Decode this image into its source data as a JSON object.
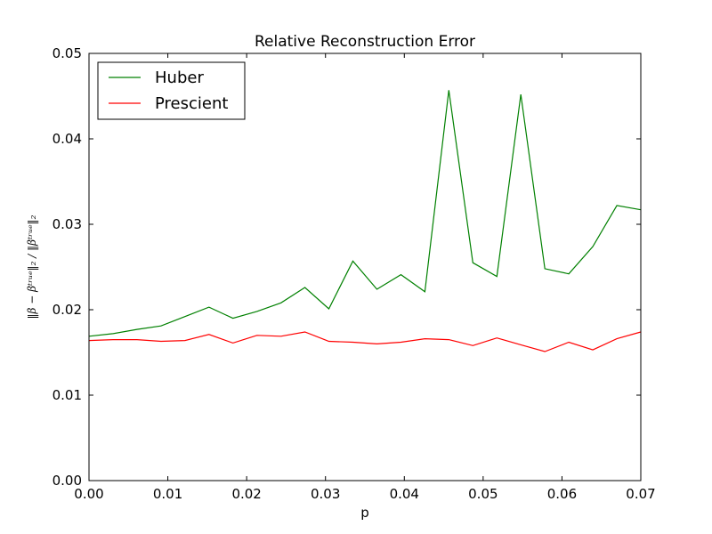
{
  "chart_data": {
    "type": "line",
    "title": "Relative Reconstruction Error",
    "xlabel": "p",
    "ylabel": "‖β − βᵗʳᵘᵉ‖₂ / ‖βᵗʳᵘᵉ‖₂",
    "xlim": [
      0.0,
      0.07
    ],
    "ylim": [
      0.0,
      0.05
    ],
    "xticks": [
      "0.00",
      "0.01",
      "0.02",
      "0.03",
      "0.04",
      "0.05",
      "0.06",
      "0.07"
    ],
    "yticks": [
      "0.00",
      "0.01",
      "0.02",
      "0.03",
      "0.04",
      "0.05"
    ],
    "legend_position": "top-left",
    "grid": false,
    "x": [
      0.0,
      0.00304,
      0.00609,
      0.00913,
      0.01217,
      0.01522,
      0.01826,
      0.0213,
      0.02435,
      0.02739,
      0.03043,
      0.03348,
      0.03652,
      0.03957,
      0.04261,
      0.04565,
      0.0487,
      0.05174,
      0.05478,
      0.05783,
      0.06087,
      0.06391,
      0.06696,
      0.07
    ],
    "series": [
      {
        "name": "Huber",
        "color": "#008000",
        "values": [
          0.0169,
          0.0172,
          0.0177,
          0.0181,
          0.0192,
          0.0203,
          0.019,
          0.0198,
          0.0208,
          0.0226,
          0.0201,
          0.0257,
          0.0224,
          0.0241,
          0.0221,
          0.0457,
          0.0255,
          0.0239,
          0.0452,
          0.0248,
          0.0242,
          0.0274,
          0.0322,
          0.0317
        ]
      },
      {
        "name": "Prescient",
        "color": "#ff0000",
        "values": [
          0.0164,
          0.0165,
          0.0165,
          0.0163,
          0.0164,
          0.0171,
          0.0161,
          0.017,
          0.0169,
          0.0174,
          0.0163,
          0.0162,
          0.016,
          0.0162,
          0.0166,
          0.0165,
          0.0158,
          0.0167,
          0.0159,
          0.0151,
          0.0162,
          0.0153,
          0.0166,
          0.0174
        ]
      }
    ]
  }
}
